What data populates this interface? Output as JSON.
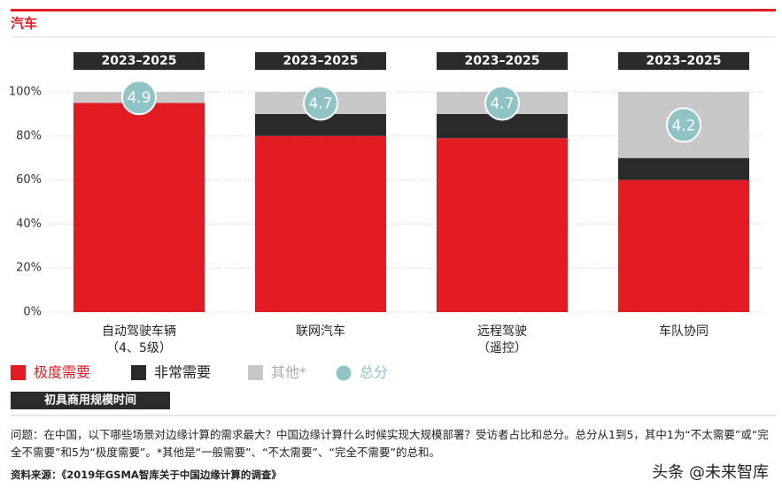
{
  "page": {
    "section": "汽车",
    "tag": "初具商用规模时间",
    "question": "问题：在中国，以下哪些场景对边缘计算的需求最大？中国边缘计算什么时候实现大规模部署？受访者占比和总分。总分从1到5，其中1为“不太需要”或“完全不需要”和5为“极度需要”。*其他是“一般需要”、“不太需要”、“完全不需要”的总和。",
    "source": "资料来源：《2019年GSMA智库关于中国边缘计算的调查》",
    "watermark": "头条 @未来智库"
  },
  "chart_data": {
    "type": "stacked_bar",
    "categories": [
      "自动驾驶车辆",
      "联网汽车",
      "远程驾驶",
      "车队协同"
    ],
    "category_sublabels": [
      "（4、5级）",
      null,
      "（遥控）",
      null
    ],
    "period_labels": [
      "2023–2025",
      "2023–2025",
      "2023–2025",
      "2023–2025"
    ],
    "series": [
      {
        "name": "极度需要",
        "color": "#e31b23",
        "values": [
          95,
          80,
          79,
          60
        ]
      },
      {
        "name": "非常需要",
        "color": "#2b2b2b",
        "values": [
          0,
          10,
          11,
          10
        ]
      },
      {
        "name": "其他*",
        "color": "#c8c8c8",
        "values": [
          5,
          10,
          10,
          30
        ]
      }
    ],
    "scores": {
      "name": "总分",
      "color": "#8fc3c4",
      "values": [
        4.9,
        4.7,
        4.7,
        4.2
      ]
    },
    "ylim": [
      0,
      100
    ],
    "yticks": [
      {
        "value": 0,
        "label": "0%"
      },
      {
        "value": 20,
        "label": "20%"
      },
      {
        "value": 40,
        "label": "40%"
      },
      {
        "value": 60,
        "label": "60%"
      },
      {
        "value": 80,
        "label": "80%"
      },
      {
        "value": 100,
        "label": "100%"
      }
    ],
    "grid": true
  }
}
